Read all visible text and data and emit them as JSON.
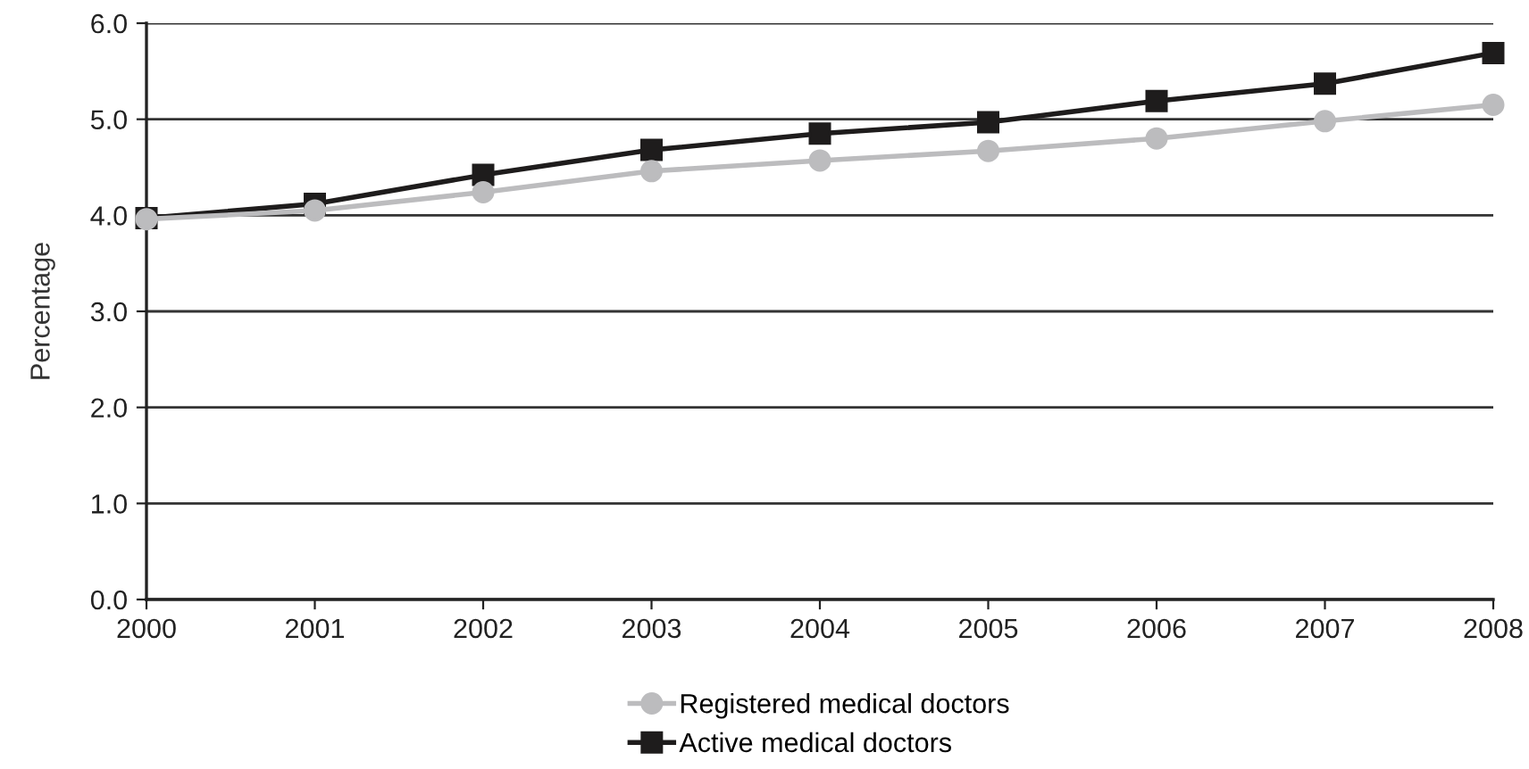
{
  "chart_data": {
    "type": "line",
    "ylabel": "Percentage",
    "x": [
      2000,
      2001,
      2002,
      2003,
      2004,
      2005,
      2006,
      2007,
      2008
    ],
    "series": [
      {
        "name": "Registered medical doctors",
        "color": "#bcbcbe",
        "marker": "circle",
        "values": [
          3.96,
          4.05,
          4.24,
          4.46,
          4.57,
          4.67,
          4.8,
          4.98,
          5.15
        ]
      },
      {
        "name": "Active medical doctors",
        "color": "#1e1c1c",
        "marker": "square",
        "values": [
          3.97,
          4.12,
          4.42,
          4.68,
          4.85,
          4.97,
          5.19,
          5.37,
          5.69
        ]
      }
    ],
    "xlim": [
      2000,
      2008
    ],
    "xticks": [
      2000,
      2001,
      2002,
      2003,
      2004,
      2005,
      2006,
      2007,
      2008
    ],
    "ylim": [
      0,
      6
    ],
    "yticks": [
      {
        "value": 0,
        "label": "0.0"
      },
      {
        "value": 1,
        "label": "1.0"
      },
      {
        "value": 2,
        "label": "2.0"
      },
      {
        "value": 3,
        "label": "3.0"
      },
      {
        "value": 4,
        "label": "4.0"
      },
      {
        "value": 5,
        "label": "5.0"
      },
      {
        "value": 6,
        "label": "6.0"
      }
    ],
    "grid": "y",
    "legend": "bottom",
    "line_style": "solid"
  }
}
